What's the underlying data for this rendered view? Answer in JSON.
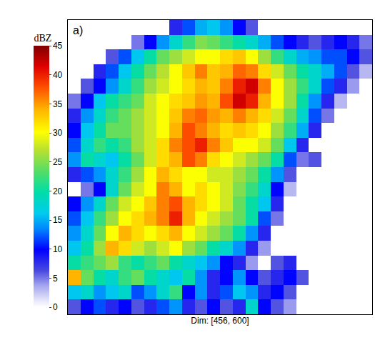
{
  "chart_data": {
    "type": "heatmap",
    "panel_label": "a)",
    "xlabel": "Dim: [456, 600]",
    "colorbar_title": "dBZ",
    "xlim": [
      0,
      600
    ],
    "ylim": [
      456,
      0
    ],
    "tick_labels": false,
    "color_range": [
      0,
      45
    ],
    "color_ticks": [
      0,
      5,
      10,
      15,
      20,
      25,
      30,
      35,
      40,
      45
    ],
    "cells": [
      [
        0,
        0,
        0,
        0,
        0,
        0,
        0,
        0,
        8,
        12,
        15,
        16,
        14,
        10,
        6,
        0,
        0,
        0,
        0,
        0,
        0,
        0,
        0,
        0
      ],
      [
        0,
        0,
        0,
        0,
        0,
        5,
        10,
        14,
        18,
        22,
        25,
        24,
        22,
        20,
        18,
        15,
        12,
        10,
        8,
        6,
        8,
        10,
        8,
        5
      ],
      [
        0,
        0,
        0,
        6,
        12,
        16,
        20,
        24,
        26,
        28,
        30,
        30,
        32,
        33,
        30,
        26,
        22,
        18,
        15,
        14,
        12,
        12,
        10,
        6
      ],
      [
        0,
        0,
        8,
        12,
        16,
        20,
        24,
        27,
        30,
        33,
        36,
        33,
        34,
        37,
        36,
        32,
        28,
        24,
        20,
        18,
        15,
        12,
        6,
        3
      ],
      [
        0,
        6,
        10,
        14,
        18,
        22,
        26,
        28,
        30,
        32,
        34,
        33,
        36,
        40,
        42,
        36,
        30,
        26,
        22,
        18,
        12,
        8,
        4,
        0
      ],
      [
        5,
        10,
        16,
        20,
        22,
        24,
        28,
        30,
        32,
        33,
        35,
        34,
        38,
        42,
        40,
        34,
        30,
        26,
        20,
        14,
        8,
        3,
        0,
        0
      ],
      [
        8,
        14,
        18,
        22,
        24,
        26,
        28,
        30,
        33,
        36,
        37,
        35,
        34,
        36,
        34,
        32,
        28,
        24,
        18,
        12,
        5,
        0,
        0,
        0
      ],
      [
        10,
        16,
        20,
        24,
        24,
        26,
        28,
        30,
        34,
        38,
        36,
        34,
        32,
        33,
        32,
        30,
        26,
        22,
        15,
        8,
        0,
        0,
        0,
        0
      ],
      [
        12,
        18,
        22,
        20,
        22,
        26,
        28,
        32,
        36,
        38,
        40,
        36,
        33,
        30,
        30,
        28,
        24,
        16,
        8,
        0,
        0,
        0,
        0,
        0
      ],
      [
        14,
        20,
        18,
        16,
        20,
        24,
        28,
        32,
        34,
        38,
        36,
        32,
        30,
        28,
        26,
        24,
        20,
        12,
        5,
        6,
        0,
        0,
        0,
        0
      ],
      [
        8,
        12,
        14,
        18,
        22,
        26,
        30,
        34,
        32,
        30,
        30,
        28,
        28,
        26,
        24,
        20,
        14,
        6,
        0,
        0,
        0,
        0,
        0,
        0
      ],
      [
        0,
        5,
        10,
        18,
        24,
        28,
        30,
        36,
        34,
        30,
        32,
        30,
        28,
        25,
        22,
        18,
        10,
        3,
        0,
        0,
        0,
        0,
        0,
        0
      ],
      [
        10,
        14,
        18,
        24,
        28,
        30,
        33,
        36,
        38,
        34,
        32,
        30,
        28,
        24,
        20,
        16,
        8,
        0,
        0,
        0,
        0,
        0,
        0,
        0
      ],
      [
        12,
        16,
        22,
        26,
        30,
        32,
        34,
        36,
        40,
        34,
        30,
        28,
        26,
        24,
        20,
        12,
        5,
        0,
        0,
        0,
        0,
        0,
        0,
        0
      ],
      [
        14,
        18,
        24,
        30,
        34,
        32,
        30,
        32,
        34,
        30,
        28,
        26,
        24,
        20,
        14,
        8,
        0,
        0,
        0,
        0,
        0,
        0,
        0,
        0
      ],
      [
        16,
        20,
        26,
        34,
        32,
        28,
        26,
        28,
        30,
        26,
        24,
        20,
        18,
        14,
        8,
        4,
        0,
        0,
        0,
        0,
        0,
        0,
        0,
        0
      ],
      [
        20,
        22,
        24,
        26,
        22,
        20,
        22,
        24,
        20,
        18,
        16,
        14,
        10,
        8,
        4,
        0,
        6,
        8,
        0,
        0,
        0,
        0,
        0,
        0
      ],
      [
        34,
        24,
        20,
        18,
        22,
        24,
        20,
        18,
        16,
        20,
        14,
        8,
        10,
        14,
        10,
        6,
        8,
        10,
        6,
        0,
        0,
        0,
        0,
        0
      ],
      [
        16,
        18,
        14,
        16,
        18,
        12,
        14,
        18,
        22,
        10,
        14,
        8,
        12,
        16,
        14,
        8,
        10,
        6,
        0,
        0,
        0,
        0,
        0,
        0
      ],
      [
        6,
        10,
        12,
        8,
        10,
        6,
        8,
        12,
        14,
        8,
        6,
        10,
        6,
        8,
        18,
        10,
        6,
        4,
        0,
        0,
        0,
        0,
        0,
        0
      ]
    ]
  }
}
